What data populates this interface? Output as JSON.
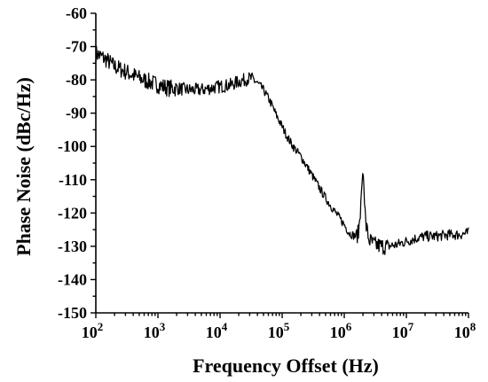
{
  "chart_data": {
    "type": "line",
    "title": "",
    "xlabel": "Frequency Offset (Hz)",
    "ylabel": "Phase Noise (dBc/Hz)",
    "x_scale": "log",
    "xlim": [
      100,
      100000000
    ],
    "ylim": [
      -150,
      -60
    ],
    "x_ticks": [
      {
        "value": 100,
        "base": "10",
        "exp": "2"
      },
      {
        "value": 1000,
        "base": "10",
        "exp": "3"
      },
      {
        "value": 10000,
        "base": "10",
        "exp": "4"
      },
      {
        "value": 100000,
        "base": "10",
        "exp": "5"
      },
      {
        "value": 1000000,
        "base": "10",
        "exp": "6"
      },
      {
        "value": 10000000,
        "base": "10",
        "exp": "7"
      },
      {
        "value": 100000000,
        "base": "10",
        "exp": "8"
      }
    ],
    "y_ticks": [
      -60,
      -70,
      -80,
      -90,
      -100,
      -110,
      -120,
      -130,
      -140,
      -150
    ],
    "grid": false,
    "legend": "none",
    "line_color": "#000000",
    "series": [
      {
        "x": [
          100,
          150,
          200,
          300,
          500,
          700,
          1000,
          1500,
          2000,
          3000,
          5000,
          7000,
          10000,
          15000,
          20000,
          25000,
          30000,
          35000,
          40000,
          45000,
          50000,
          60000,
          70000,
          80000,
          100000,
          120000,
          150000,
          200000,
          300000,
          400000,
          500000,
          700000,
          1000000,
          1200000,
          1500000,
          1700000,
          1800000,
          1900000,
          2000000,
          2100000,
          2200000,
          2500000,
          3000000,
          4000000,
          5000000,
          7000000,
          10000000,
          15000000,
          20000000,
          30000000,
          50000000,
          70000000,
          100000000
        ],
        "y": [
          -72,
          -74,
          -76,
          -77.5,
          -79.5,
          -80.5,
          -81.5,
          -82.5,
          -82.5,
          -83,
          -83,
          -82.5,
          -82,
          -81.5,
          -80.5,
          -80,
          -79.5,
          -80,
          -81,
          -82,
          -83,
          -85.5,
          -88,
          -90.5,
          -94,
          -97,
          -100,
          -103,
          -108.5,
          -112.5,
          -115.5,
          -119.5,
          -123.5,
          -126,
          -127,
          -126,
          -120,
          -113,
          -107,
          -114,
          -123,
          -128,
          -129.5,
          -130,
          -130,
          -129.5,
          -128.5,
          -127.5,
          -127,
          -127,
          -126.5,
          -126.5,
          -126
        ]
      }
    ]
  }
}
